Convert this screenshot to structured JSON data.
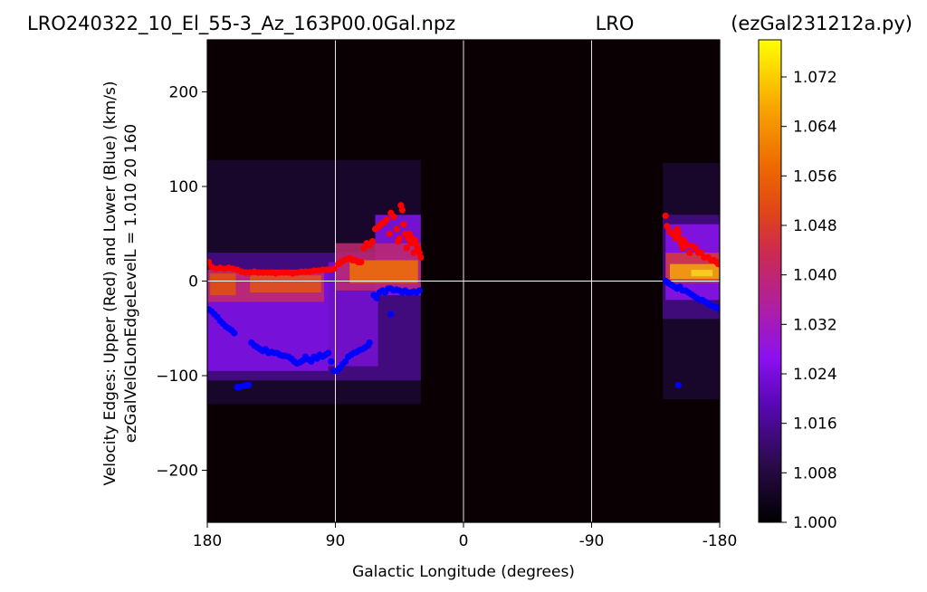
{
  "header": {
    "left": "LRO240322_10_El_55-3_Az_163P00.0Gal.npz",
    "center": "LRO",
    "right": "(ezGal231212a.py)"
  },
  "chart_data": {
    "type": "heatmap",
    "xlabel": "Galactic Longitude (degrees)",
    "ylabel_line1": "Velocity Edges: Upper (Red) and Lower (Blue) (km/s)",
    "ylabel_line2": "ezGalVelGLonEdgeLevelL = 1.010  20  160",
    "x_range": [
      180,
      -180
    ],
    "y_range": [
      -255,
      255
    ],
    "x_ticks": [
      {
        "value": 180,
        "label": "180"
      },
      {
        "value": 90,
        "label": "90"
      },
      {
        "value": 0,
        "label": "0"
      },
      {
        "value": -90,
        "label": "-90"
      },
      {
        "value": -180,
        "label": "-180"
      }
    ],
    "y_ticks": [
      {
        "value": 200,
        "label": "200"
      },
      {
        "value": 100,
        "label": "100"
      },
      {
        "value": 0,
        "label": "0"
      },
      {
        "value": -100,
        "label": "−100"
      },
      {
        "value": -200,
        "label": "−200"
      }
    ],
    "grid": true,
    "colormap": "gnuplot",
    "colorbar": {
      "min": 1.0,
      "max": 1.078,
      "ticks": [
        {
          "value": 1.0,
          "label": "1.000"
        },
        {
          "value": 1.008,
          "label": "1.008"
        },
        {
          "value": 1.016,
          "label": "1.016"
        },
        {
          "value": 1.024,
          "label": "1.024"
        },
        {
          "value": 1.032,
          "label": "1.032"
        },
        {
          "value": 1.04,
          "label": "1.040"
        },
        {
          "value": 1.048,
          "label": "1.048"
        },
        {
          "value": 1.056,
          "label": "1.056"
        },
        {
          "value": 1.064,
          "label": "1.064"
        },
        {
          "value": 1.072,
          "label": "1.072"
        }
      ]
    },
    "upper_edge": {
      "color": "#ff0000",
      "points": [
        [
          179,
          20
        ],
        [
          177,
          15
        ],
        [
          174,
          13
        ],
        [
          171,
          14
        ],
        [
          168,
          13
        ],
        [
          165,
          14
        ],
        [
          162,
          13
        ],
        [
          159,
          12
        ],
        [
          156,
          10
        ],
        [
          153,
          9
        ],
        [
          150,
          9
        ],
        [
          147,
          10
        ],
        [
          144,
          9
        ],
        [
          141,
          9
        ],
        [
          138,
          9
        ],
        [
          135,
          9
        ],
        [
          132,
          8
        ],
        [
          129,
          9
        ],
        [
          126,
          9
        ],
        [
          123,
          9
        ],
        [
          120,
          8
        ],
        [
          117,
          9
        ],
        [
          114,
          10
        ],
        [
          111,
          10
        ],
        [
          108,
          10
        ],
        [
          105,
          11
        ],
        [
          102,
          11
        ],
        [
          99,
          12
        ],
        [
          96,
          12
        ],
        [
          94,
          12
        ],
        [
          91,
          13
        ],
        [
          88,
          18
        ],
        [
          86,
          20
        ],
        [
          84,
          22
        ],
        [
          82,
          23
        ],
        [
          80,
          24
        ],
        [
          78,
          22
        ],
        [
          76,
          22
        ],
        [
          74,
          20
        ],
        [
          72,
          20
        ],
        [
          70,
          35
        ],
        [
          68,
          40
        ],
        [
          66,
          38
        ],
        [
          64,
          42
        ],
        [
          62,
          55
        ],
        [
          60,
          57
        ],
        [
          58,
          60
        ],
        [
          56,
          62
        ],
        [
          54,
          65
        ],
        [
          52,
          50
        ],
        [
          51,
          72
        ],
        [
          49,
          68
        ],
        [
          47,
          55
        ],
        [
          46,
          42
        ],
        [
          45,
          45
        ],
        [
          44,
          80
        ],
        [
          43,
          75
        ],
        [
          42,
          60
        ],
        [
          41,
          50
        ],
        [
          40,
          35
        ],
        [
          39,
          45
        ],
        [
          38,
          50
        ],
        [
          37,
          40
        ],
        [
          36,
          45
        ],
        [
          35,
          30
        ],
        [
          34,
          43
        ],
        [
          33,
          38
        ],
        [
          32,
          35
        ],
        [
          31,
          30
        ],
        [
          30,
          25
        ],
        [
          -142,
          69
        ],
        [
          -143,
          58
        ],
        [
          -145,
          52
        ],
        [
          -147,
          50
        ],
        [
          -149,
          45
        ],
        [
          -150,
          55
        ],
        [
          -151,
          52
        ],
        [
          -152,
          45
        ],
        [
          -153,
          40
        ],
        [
          -154,
          35
        ],
        [
          -155,
          43
        ],
        [
          -157,
          38
        ],
        [
          -159,
          30
        ],
        [
          -161,
          37
        ],
        [
          -163,
          35
        ],
        [
          -165,
          30
        ],
        [
          -167,
          30
        ],
        [
          -169,
          25
        ],
        [
          -172,
          25
        ],
        [
          -174,
          22
        ],
        [
          -176,
          22
        ],
        [
          -178,
          20
        ],
        [
          -179,
          18
        ]
      ]
    },
    "lower_edge": {
      "color": "#0000ff",
      "points": [
        [
          179,
          -30
        ],
        [
          177,
          -32
        ],
        [
          175,
          -35
        ],
        [
          173,
          -38
        ],
        [
          171,
          -42
        ],
        [
          169,
          -45
        ],
        [
          167,
          -48
        ],
        [
          165,
          -50
        ],
        [
          163,
          -52
        ],
        [
          161,
          -55
        ],
        [
          159,
          -112
        ],
        [
          157,
          -112
        ],
        [
          155,
          -111
        ],
        [
          153,
          -110
        ],
        [
          151,
          -110
        ],
        [
          149,
          -65
        ],
        [
          147,
          -68
        ],
        [
          145,
          -70
        ],
        [
          143,
          -72
        ],
        [
          141,
          -74
        ],
        [
          139,
          -72
        ],
        [
          137,
          -76
        ],
        [
          135,
          -75
        ],
        [
          133,
          -76
        ],
        [
          131,
          -76
        ],
        [
          129,
          -78
        ],
        [
          127,
          -79
        ],
        [
          125,
          -79
        ],
        [
          123,
          -80
        ],
        [
          121,
          -82
        ],
        [
          119,
          -85
        ],
        [
          117,
          -87
        ],
        [
          115,
          -86
        ],
        [
          113,
          -84
        ],
        [
          111,
          -80
        ],
        [
          109,
          -83
        ],
        [
          107,
          -85
        ],
        [
          105,
          -80
        ],
        [
          103,
          -82
        ],
        [
          101,
          -78
        ],
        [
          99,
          -80
        ],
        [
          97,
          -78
        ],
        [
          95,
          -76
        ],
        [
          93,
          -85
        ],
        [
          91,
          -95
        ],
        [
          89,
          -95
        ],
        [
          87,
          -92
        ],
        [
          85,
          -88
        ],
        [
          83,
          -85
        ],
        [
          81,
          -80
        ],
        [
          79,
          -78
        ],
        [
          77,
          -76
        ],
        [
          75,
          -75
        ],
        [
          73,
          -73
        ],
        [
          71,
          -72
        ],
        [
          69,
          -70
        ],
        [
          67,
          -68
        ],
        [
          66,
          -65
        ],
        [
          63,
          -15
        ],
        [
          61,
          -18
        ],
        [
          59,
          -12
        ],
        [
          57,
          -10
        ],
        [
          55,
          -12
        ],
        [
          53,
          -8
        ],
        [
          51,
          -8
        ],
        [
          49,
          -10
        ],
        [
          47,
          -9
        ],
        [
          45,
          -10
        ],
        [
          43,
          -12
        ],
        [
          41,
          -10
        ],
        [
          39,
          -12
        ],
        [
          37,
          -12
        ],
        [
          35,
          -11
        ],
        [
          33,
          -12
        ],
        [
          31,
          -10
        ],
        [
          51,
          -35
        ],
        [
          -142,
          0
        ],
        [
          -144,
          -2
        ],
        [
          -146,
          -4
        ],
        [
          -148,
          -6
        ],
        [
          -150,
          -8
        ],
        [
          -152,
          -6
        ],
        [
          -154,
          -10
        ],
        [
          -156,
          -10
        ],
        [
          -158,
          -12
        ],
        [
          -160,
          -14
        ],
        [
          -162,
          -16
        ],
        [
          -164,
          -18
        ],
        [
          -166,
          -20
        ],
        [
          -168,
          -20
        ],
        [
          -170,
          -22
        ],
        [
          -172,
          -24
        ],
        [
          -174,
          -26
        ],
        [
          -176,
          -27
        ],
        [
          -178,
          -28
        ],
        [
          -180,
          -30
        ],
        [
          -151,
          -110
        ]
      ]
    }
  }
}
